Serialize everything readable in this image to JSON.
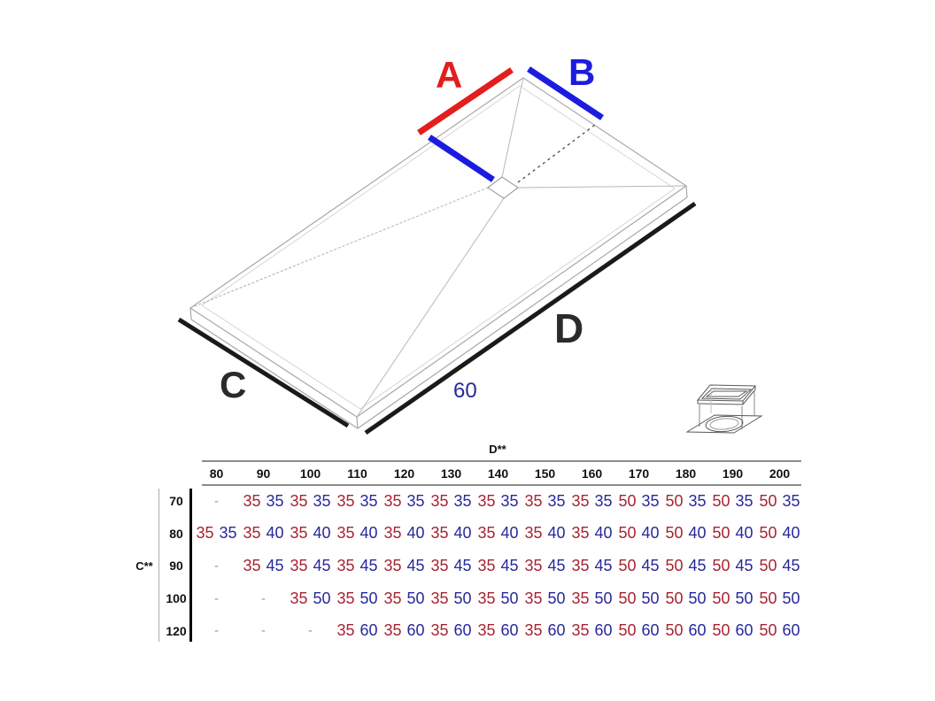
{
  "diagram": {
    "labels": {
      "a": "A",
      "b": "B",
      "c": "C",
      "d": "D",
      "drain_offset": "60"
    },
    "icons": [
      "shower-tray-isometric-drawing",
      "drain-grate-detail-icon"
    ]
  },
  "colors": {
    "dimension_red": "#e41d1d",
    "dimension_blue": "#1c1ce0",
    "table_red": "#a62433",
    "table_blue": "#28289c",
    "edge_line_black": "#1a1a1a",
    "tray_outline_gray": "#a8a8a8"
  },
  "table": {
    "d_axis_label": "D**",
    "c_axis_label": "C**",
    "columns": [
      "80",
      "90",
      "100",
      "110",
      "120",
      "130",
      "140",
      "150",
      "160",
      "170",
      "180",
      "190",
      "200"
    ],
    "rows": [
      {
        "label": "70",
        "cells": [
          "-",
          [
            "35",
            "35"
          ],
          [
            "35",
            "35"
          ],
          [
            "35",
            "35"
          ],
          [
            "35",
            "35"
          ],
          [
            "35",
            "35"
          ],
          [
            "35",
            "35"
          ],
          [
            "35",
            "35"
          ],
          [
            "35",
            "35"
          ],
          [
            "50",
            "35"
          ],
          [
            "50",
            "35"
          ],
          [
            "50",
            "35"
          ],
          [
            "50",
            "35"
          ]
        ]
      },
      {
        "label": "80",
        "cells": [
          [
            "35",
            "35"
          ],
          [
            "35",
            "40"
          ],
          [
            "35",
            "40"
          ],
          [
            "35",
            "40"
          ],
          [
            "35",
            "40"
          ],
          [
            "35",
            "40"
          ],
          [
            "35",
            "40"
          ],
          [
            "35",
            "40"
          ],
          [
            "35",
            "40"
          ],
          [
            "50",
            "40"
          ],
          [
            "50",
            "40"
          ],
          [
            "50",
            "40"
          ],
          [
            "50",
            "40"
          ]
        ]
      },
      {
        "label": "90",
        "cells": [
          "-",
          [
            "35",
            "45"
          ],
          [
            "35",
            "45"
          ],
          [
            "35",
            "45"
          ],
          [
            "35",
            "45"
          ],
          [
            "35",
            "45"
          ],
          [
            "35",
            "45"
          ],
          [
            "35",
            "45"
          ],
          [
            "35",
            "45"
          ],
          [
            "50",
            "45"
          ],
          [
            "50",
            "45"
          ],
          [
            "50",
            "45"
          ],
          [
            "50",
            "45"
          ]
        ]
      },
      {
        "label": "100",
        "cells": [
          "-",
          "-",
          [
            "35",
            "50"
          ],
          [
            "35",
            "50"
          ],
          [
            "35",
            "50"
          ],
          [
            "35",
            "50"
          ],
          [
            "35",
            "50"
          ],
          [
            "35",
            "50"
          ],
          [
            "35",
            "50"
          ],
          [
            "50",
            "50"
          ],
          [
            "50",
            "50"
          ],
          [
            "50",
            "50"
          ],
          [
            "50",
            "50"
          ]
        ]
      },
      {
        "label": "120",
        "cells": [
          "-",
          "-",
          "-",
          [
            "35",
            "60"
          ],
          [
            "35",
            "60"
          ],
          [
            "35",
            "60"
          ],
          [
            "35",
            "60"
          ],
          [
            "35",
            "60"
          ],
          [
            "35",
            "60"
          ],
          [
            "50",
            "60"
          ],
          [
            "50",
            "60"
          ],
          [
            "50",
            "60"
          ],
          [
            "50",
            "60"
          ]
        ]
      }
    ]
  }
}
